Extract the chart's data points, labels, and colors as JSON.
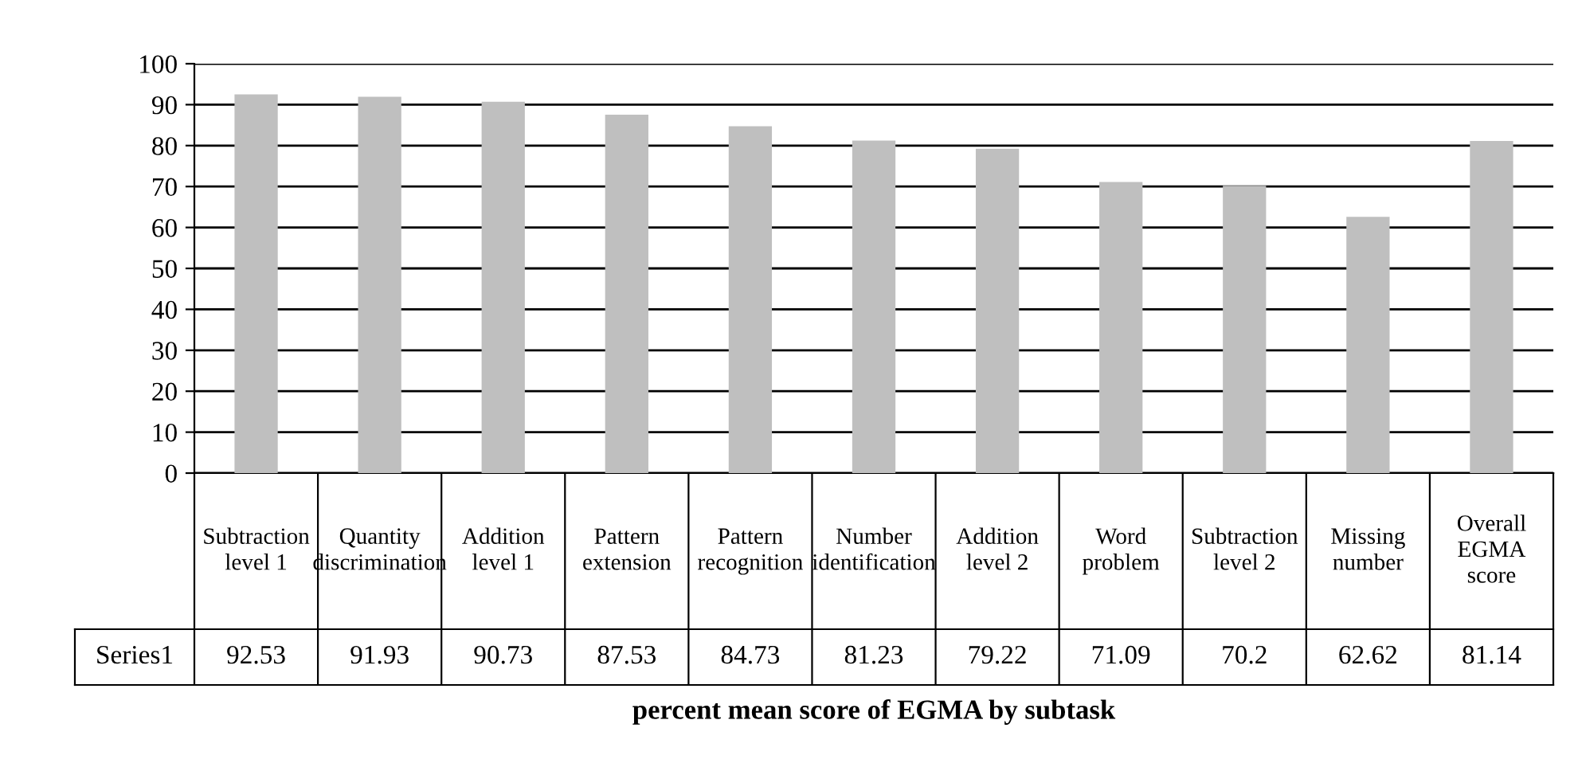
{
  "chart_data": {
    "type": "bar",
    "title": "percent mean score of EGMA by subtask",
    "categories": [
      "Subtraction level 1",
      "Quantity discrimination",
      "Addition level 1",
      "Pattern extension",
      "Pattern recognition",
      "Number identification",
      "Addition level 2",
      "Word problem",
      "Subtraction level 2",
      "Missing number",
      "Overall EGMA score"
    ],
    "series": [
      {
        "name": "Series1",
        "color": "#bfbfbf",
        "values": [
          92.53,
          91.93,
          90.73,
          87.53,
          84.73,
          81.23,
          79.22,
          71.09,
          70.2,
          62.62,
          81.14
        ]
      }
    ],
    "ylim": [
      0,
      100
    ],
    "yticks": [
      0,
      10,
      20,
      30,
      40,
      50,
      60,
      70,
      80,
      90,
      100
    ],
    "grid": "y",
    "data_labels": true,
    "legend": false
  }
}
